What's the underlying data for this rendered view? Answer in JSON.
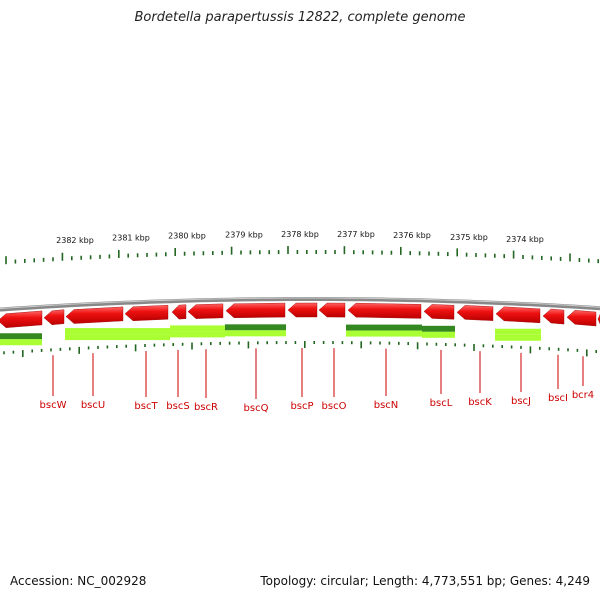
{
  "title": "Bordetella parapertussis 12822, complete genome",
  "footer": {
    "accession": "Accession: NC_002928",
    "summary": "Topology: circular; Length: 4,773,551 bp; Genes: 4,249"
  },
  "colors": {
    "gene": "#ee1111",
    "feature_light": "#aaff33",
    "feature_dark": "#338822",
    "tick": "#226622",
    "backbone": "#888888",
    "label": "#cc0000"
  },
  "scale_labels": [
    "2382 kbp",
    "2381 kbp",
    "2380 kbp",
    "2379 kbp",
    "2378 kbp",
    "2377 kbp",
    "2376 kbp",
    "2375 kbp",
    "2374 kbp"
  ],
  "genes": [
    "bscW",
    "bscU",
    "bscT",
    "bscS",
    "bscR",
    "bscQ",
    "bscP",
    "bscO",
    "bscN",
    "bscL",
    "bscK",
    "bscJ",
    "bscI",
    "bcr4"
  ]
}
